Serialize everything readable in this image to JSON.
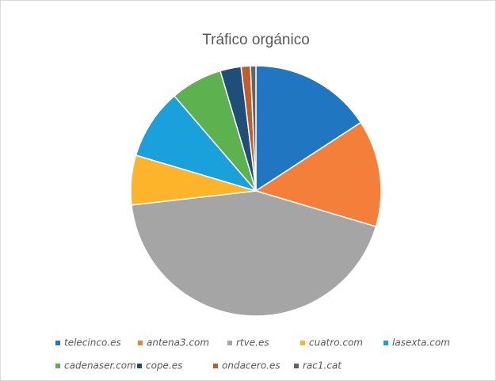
{
  "chart_data": {
    "type": "pie",
    "title": "Tráfico orgánico",
    "categories": [
      "telecinco.es",
      "antena3.com",
      "rtve.es",
      "cuatro.com",
      "lasexta.com",
      "cadenaser.com",
      "cope.es",
      "ondacero.es",
      "rac1.cat"
    ],
    "values": [
      15.8,
      13.8,
      43.6,
      6.4,
      9.1,
      6.7,
      2.7,
      1.2,
      0.7
    ],
    "colors": [
      "#2176c1",
      "#f47f3b",
      "#a5a5a5",
      "#fdb42b",
      "#1aa0db",
      "#5db14e",
      "#1f4e79",
      "#c55a2a",
      "#636363"
    ],
    "legend": "bottom"
  }
}
